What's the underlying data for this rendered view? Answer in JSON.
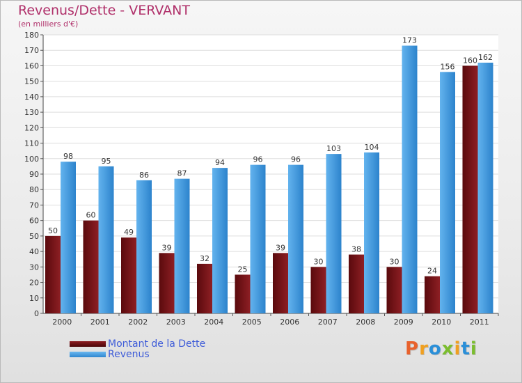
{
  "chart_data": {
    "type": "bar",
    "title": "Revenus/Dette - VERVANT",
    "subtitle": "(en milliers d'€)",
    "categories": [
      "2000",
      "2001",
      "2002",
      "2003",
      "2004",
      "2005",
      "2006",
      "2007",
      "2008",
      "2009",
      "2010",
      "2011"
    ],
    "series": [
      {
        "name": "Montant de la Dette",
        "color": "#7a1418",
        "values": [
          50,
          60,
          49,
          39,
          32,
          25,
          39,
          30,
          38,
          30,
          24,
          160
        ]
      },
      {
        "name": "Revenus",
        "color": "#4fa3e6",
        "values": [
          98,
          95,
          86,
          87,
          94,
          96,
          96,
          103,
          104,
          173,
          156,
          162
        ]
      }
    ],
    "ylim": [
      0,
      180
    ],
    "ytick_step": 10,
    "grid": "horizontal",
    "legend_position": "bottom-left"
  },
  "logo": {
    "letters": [
      "P",
      "r",
      "o",
      "x",
      "i",
      "t",
      "i"
    ],
    "colors": [
      "#e8612c",
      "#f0a020",
      "#2a8fd8",
      "#7bbd2e",
      "#f0a020",
      "#2a8fd8",
      "#7bbd2e"
    ]
  }
}
